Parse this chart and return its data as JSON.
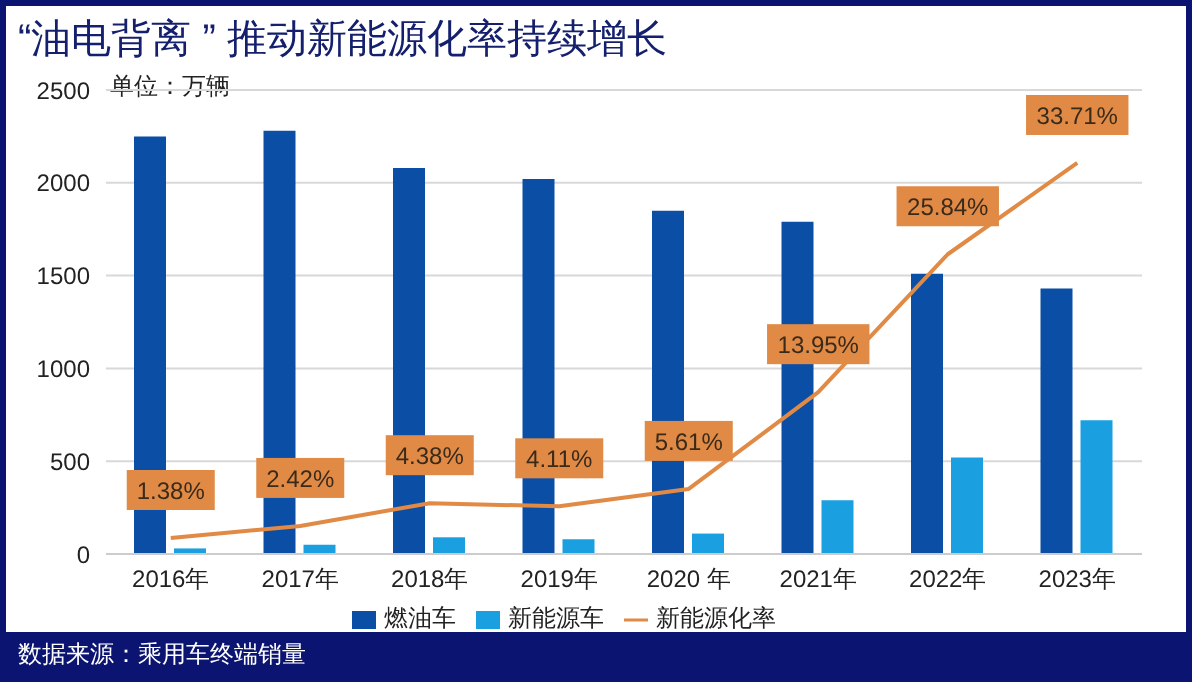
{
  "chart_data": {
    "type": "bar",
    "title": "“油电背离 ” 推动新能源化率持续增长",
    "annotations": [
      "单位：万辆",
      "数据来源：乘用车终端销量"
    ],
    "categories": [
      "2016年",
      "2017年",
      "2018年",
      "2019年",
      "2020 年",
      "2021年",
      "2022年",
      "2023年"
    ],
    "series": [
      {
        "name": "燃油车",
        "color": "#0b4ea6",
        "values": [
          2250,
          2280,
          2080,
          2020,
          1850,
          1790,
          1510,
          1430
        ]
      },
      {
        "name": "新能源车",
        "color": "#1a9fe0",
        "values": [
          30,
          50,
          90,
          80,
          110,
          290,
          520,
          720
        ]
      },
      {
        "name": "新能源化率",
        "type": "line",
        "axis": "y2",
        "color": "#e08a45",
        "values": [
          1.38,
          2.42,
          4.38,
          4.11,
          5.61,
          13.95,
          25.84,
          33.71
        ],
        "value_labels": [
          "1.38%",
          "2.42%",
          "4.38%",
          "4.11%",
          "5.61%",
          "13.95%",
          "25.84%",
          "33.71%"
        ]
      }
    ],
    "ylim": [
      0,
      2500
    ],
    "yticks": [
      0,
      500,
      1000,
      1500,
      2000,
      2500
    ],
    "y2lim": [
      0,
      40
    ],
    "grid": "y",
    "legend": "bottom",
    "marker": "none"
  }
}
